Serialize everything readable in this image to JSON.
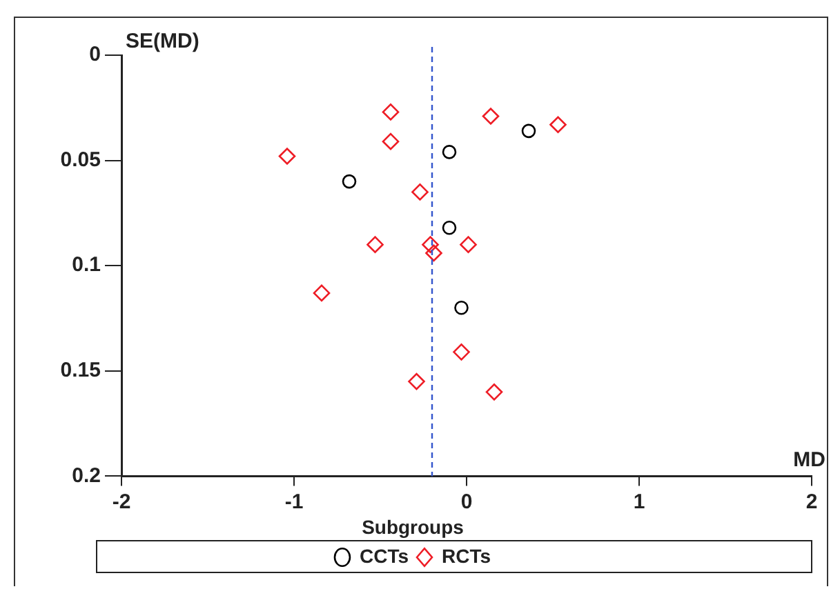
{
  "chart_data": {
    "type": "scatter",
    "xlabel": "MD",
    "ylabel": "SE(MD)",
    "legend_title": "Subgroups",
    "xlim": [
      -2,
      2
    ],
    "xticks": [
      -2,
      -1,
      0,
      1,
      2
    ],
    "ylim": [
      0.2,
      0
    ],
    "yticks": [
      0,
      0.05,
      0.1,
      0.15,
      0.2
    ],
    "grid": false,
    "legend": "bottom",
    "ref_lines": [
      {
        "axis": "x",
        "value": -0.2,
        "color": "#3355cc",
        "line_style": "dashed"
      }
    ],
    "series": [
      {
        "name": "CCTs",
        "color": "#000000",
        "marker": "circle",
        "x": [
          0.36,
          -0.1,
          -0.68,
          -0.1,
          -0.03
        ],
        "values": [
          0.036,
          0.046,
          0.06,
          0.082,
          0.12
        ]
      },
      {
        "name": "RCTs",
        "color": "#ee1c25",
        "marker": "diamond",
        "x": [
          -0.44,
          0.14,
          0.53,
          -0.44,
          -1.04,
          -0.27,
          -0.53,
          -0.21,
          -0.19,
          0.01,
          -0.84,
          -0.03,
          -0.29,
          0.16
        ],
        "values": [
          0.027,
          0.029,
          0.033,
          0.041,
          0.048,
          0.065,
          0.09,
          0.09,
          0.094,
          0.09,
          0.113,
          0.141,
          0.155,
          0.16
        ]
      }
    ]
  }
}
